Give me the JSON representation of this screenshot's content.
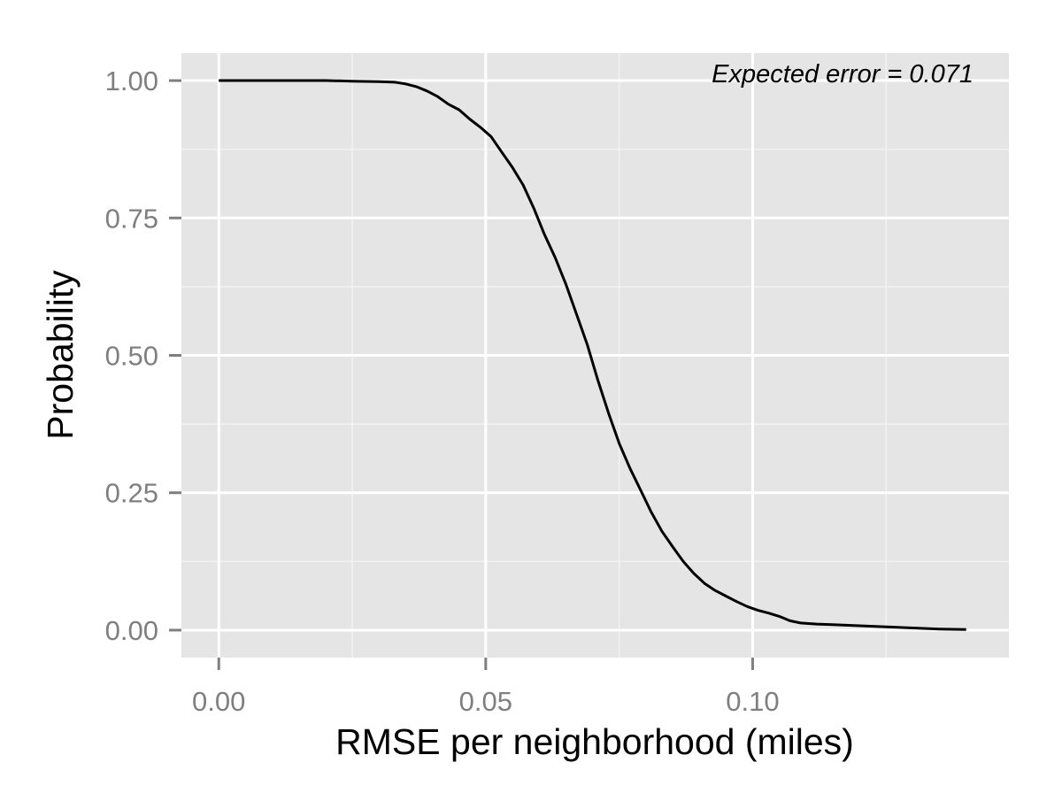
{
  "chart_data": {
    "type": "line",
    "title": "",
    "xlabel": "RMSE per neighborhood (miles)",
    "ylabel": "Probability",
    "xlim": [
      -0.007,
      0.148
    ],
    "ylim": [
      -0.05,
      1.05
    ],
    "x_ticks": [
      0.0,
      0.05,
      0.1
    ],
    "x_tick_labels": [
      "0.00",
      "0.05",
      "0.10"
    ],
    "y_ticks": [
      0.0,
      0.25,
      0.5,
      0.75,
      1.0
    ],
    "y_tick_labels": [
      "0.00",
      "0.25",
      "0.50",
      "0.75",
      "1.00"
    ],
    "grid": true,
    "legend": "none",
    "annotation": "Expected error = 0.071",
    "colors": {
      "panel": "#e5e5e5",
      "grid_major": "#ffffff",
      "grid_minor": "#f2f2f2",
      "line": "#000000",
      "tick_text": "#7f7f7f"
    },
    "series": [
      {
        "x": [
          0.0,
          0.01,
          0.02,
          0.025,
          0.03,
          0.033,
          0.035,
          0.037,
          0.039,
          0.041,
          0.043,
          0.045,
          0.047,
          0.049,
          0.051,
          0.053,
          0.055,
          0.057,
          0.059,
          0.061,
          0.063,
          0.065,
          0.067,
          0.069,
          0.071,
          0.073,
          0.075,
          0.077,
          0.079,
          0.081,
          0.083,
          0.085,
          0.087,
          0.089,
          0.091,
          0.093,
          0.095,
          0.097,
          0.099,
          0.101,
          0.103,
          0.105,
          0.107,
          0.109,
          0.112,
          0.115,
          0.12,
          0.125,
          0.13,
          0.135,
          0.14
        ],
        "y": [
          1.0,
          1.0,
          1.0,
          0.999,
          0.998,
          0.997,
          0.994,
          0.989,
          0.981,
          0.971,
          0.957,
          0.947,
          0.93,
          0.915,
          0.898,
          0.87,
          0.842,
          0.81,
          0.768,
          0.72,
          0.678,
          0.63,
          0.575,
          0.52,
          0.455,
          0.395,
          0.34,
          0.295,
          0.255,
          0.215,
          0.18,
          0.152,
          0.125,
          0.103,
          0.085,
          0.072,
          0.062,
          0.052,
          0.043,
          0.036,
          0.031,
          0.025,
          0.017,
          0.013,
          0.011,
          0.01,
          0.008,
          0.006,
          0.004,
          0.002,
          0.001
        ]
      }
    ]
  }
}
